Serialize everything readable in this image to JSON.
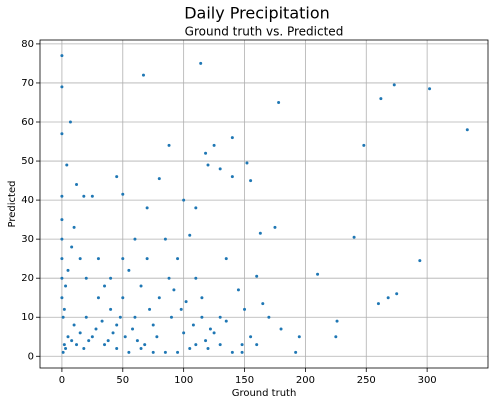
{
  "chart_data": {
    "type": "scatter",
    "title": "Daily Precipitation",
    "subtitle": "Ground truth vs. Predicted",
    "xlabel": "Ground truth",
    "ylabel": "Predicted",
    "color": "#1f77b4",
    "grid": true,
    "xlim": [
      -18,
      350
    ],
    "ylim": [
      -3,
      81
    ],
    "xticks": [
      0,
      50,
      100,
      150,
      200,
      250,
      300
    ],
    "yticks": [
      0,
      10,
      20,
      30,
      40,
      50,
      60,
      70,
      80
    ],
    "x": [
      0,
      0,
      0,
      7,
      67,
      114,
      178,
      262,
      273,
      302,
      333,
      248,
      88,
      118,
      125,
      140,
      120,
      152,
      4,
      12,
      18,
      25,
      45,
      50,
      80,
      100,
      110,
      130,
      140,
      155,
      105,
      163,
      175,
      210,
      240,
      294,
      275,
      268,
      260,
      226,
      225,
      195,
      192,
      180,
      170,
      165,
      160,
      145,
      135,
      150,
      148,
      148,
      155,
      130,
      125,
      115,
      110,
      95,
      85,
      70,
      60,
      50,
      40,
      30,
      20,
      10,
      5,
      2,
      1,
      3,
      8,
      15,
      25,
      35,
      45,
      55,
      65,
      75,
      85,
      95,
      105,
      0,
      0,
      0,
      0,
      0,
      0,
      1,
      2,
      3,
      5,
      8,
      10,
      15,
      20,
      30,
      35,
      40,
      45,
      50,
      55,
      60,
      65,
      70,
      75,
      80,
      90,
      100,
      110,
      120,
      130,
      140,
      160,
      12,
      18,
      22,
      28,
      33,
      38,
      42,
      48,
      52,
      58,
      62,
      68,
      72,
      78,
      88,
      92,
      98,
      102,
      108,
      115,
      118,
      122,
      135
    ],
    "y": [
      77,
      69,
      57,
      60,
      72,
      75,
      65,
      66,
      69.5,
      68.5,
      58,
      54,
      54,
      52,
      54,
      56,
      49,
      49.5,
      49,
      44,
      41,
      41,
      46,
      41.5,
      45.5,
      40,
      38,
      48,
      46,
      45,
      31,
      31.5,
      33,
      21,
      30.5,
      24.5,
      16,
      15,
      13.5,
      9,
      5,
      5,
      1,
      7,
      10,
      13.5,
      20.5,
      17,
      25,
      12,
      3,
      1,
      5,
      10,
      6,
      15,
      20,
      25,
      30,
      38,
      30,
      25,
      20,
      15,
      10,
      8,
      5,
      3,
      1,
      2,
      4,
      6,
      5,
      3,
      2,
      1,
      2,
      1,
      1,
      1,
      2,
      41,
      35,
      30,
      25,
      20,
      15,
      10,
      12,
      18,
      22,
      28,
      33,
      25,
      20,
      25,
      18,
      12,
      8,
      15,
      22,
      10,
      18,
      25,
      8,
      15,
      10,
      6,
      3,
      2,
      3,
      1,
      3,
      3,
      2,
      4,
      7,
      9,
      4,
      6,
      10,
      5,
      7,
      4,
      3,
      12,
      5,
      20,
      17,
      12,
      14,
      8,
      10,
      4,
      7,
      9
    ]
  }
}
